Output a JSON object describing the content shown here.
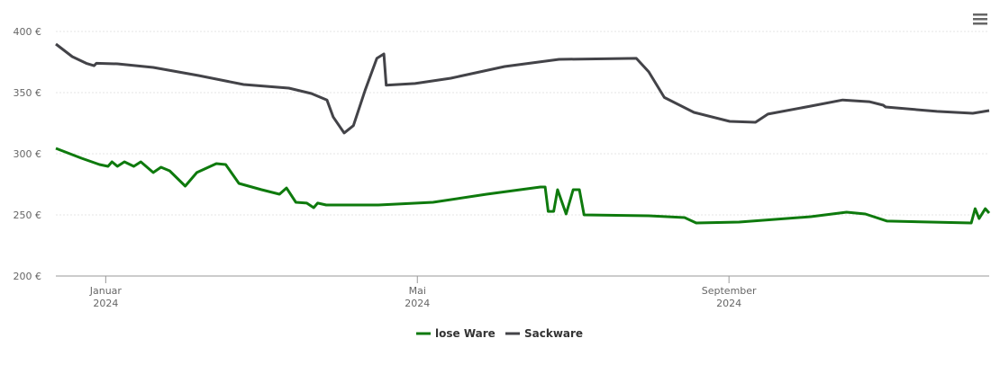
{
  "chart_data": {
    "type": "line",
    "xlim": [
      -0.64,
      11.34
    ],
    "xticks": [
      {
        "value": 0,
        "label": "Januar 2024"
      },
      {
        "value": 4,
        "label": "Mai 2024"
      },
      {
        "value": 8,
        "label": "September 2024"
      }
    ],
    "ylim": [
      200,
      400
    ],
    "yticks": [
      {
        "value": 200,
        "label": "200 €"
      },
      {
        "value": 250,
        "label": "250 €"
      },
      {
        "value": 300,
        "label": "300 €"
      },
      {
        "value": 350,
        "label": "350 €"
      },
      {
        "value": 400,
        "label": "400 €"
      }
    ],
    "grid": true,
    "legend": "bottom",
    "series": [
      {
        "name": "lose Ware",
        "color": "#0e7a0d",
        "x": [
          -0.64,
          -0.31,
          -0.08,
          0.03,
          0.08,
          0.15,
          0.24,
          0.36,
          0.45,
          0.61,
          0.71,
          0.82,
          1.02,
          1.17,
          1.42,
          1.54,
          1.71,
          2.0,
          2.23,
          2.32,
          2.44,
          2.58,
          2.67,
          2.72,
          2.83,
          3.5,
          4.2,
          4.89,
          5.58,
          5.64,
          5.68,
          5.75,
          5.8,
          5.91,
          6.0,
          6.08,
          6.14,
          6.97,
          7.43,
          7.58,
          8.13,
          9.05,
          9.51,
          9.75,
          10.03,
          11.11,
          11.16,
          11.21,
          11.29,
          11.34
        ],
        "values": [
          304.4,
          296.3,
          291.2,
          289.7,
          293.4,
          289.7,
          293.4,
          289.7,
          293.4,
          284.6,
          289,
          286,
          273.5,
          284.6,
          291.9,
          291.2,
          275.7,
          270.6,
          266.9,
          272,
          260.3,
          259.6,
          255.9,
          259.6,
          258.1,
          258.1,
          260.3,
          266.9,
          272.8,
          272.8,
          252.9,
          252.9,
          270.6,
          250.7,
          270.6,
          270.6,
          250,
          249.3,
          247.8,
          243.4,
          244.1,
          248.5,
          252.2,
          250.7,
          244.9,
          243.4,
          255.1,
          247,
          255.1,
          251.5
        ]
      },
      {
        "name": "Sackware",
        "color": "#434348",
        "x": [
          -0.64,
          -0.43,
          -0.25,
          -0.15,
          -0.12,
          0.15,
          0.61,
          1.19,
          1.77,
          2.35,
          2.64,
          2.84,
          2.92,
          3.06,
          3.18,
          3.33,
          3.48,
          3.57,
          3.6,
          3.97,
          4.43,
          5.12,
          5.82,
          6.81,
          6.97,
          7.17,
          7.55,
          8.01,
          8.34,
          8.5,
          9.05,
          9.46,
          9.8,
          9.98,
          10.01,
          10.67,
          11.13,
          11.34
        ],
        "values": [
          389.7,
          379.4,
          374,
          372,
          374,
          373.5,
          370.6,
          364,
          356.6,
          353.7,
          349.3,
          344,
          330,
          317,
          323,
          352,
          378,
          381.6,
          356,
          357.4,
          361.8,
          371.3,
          377.2,
          378,
          367,
          346,
          333.8,
          326.5,
          325.7,
          332.4,
          339,
          344,
          342.6,
          339.7,
          338.2,
          334.6,
          333.1,
          335.3
        ]
      }
    ]
  }
}
